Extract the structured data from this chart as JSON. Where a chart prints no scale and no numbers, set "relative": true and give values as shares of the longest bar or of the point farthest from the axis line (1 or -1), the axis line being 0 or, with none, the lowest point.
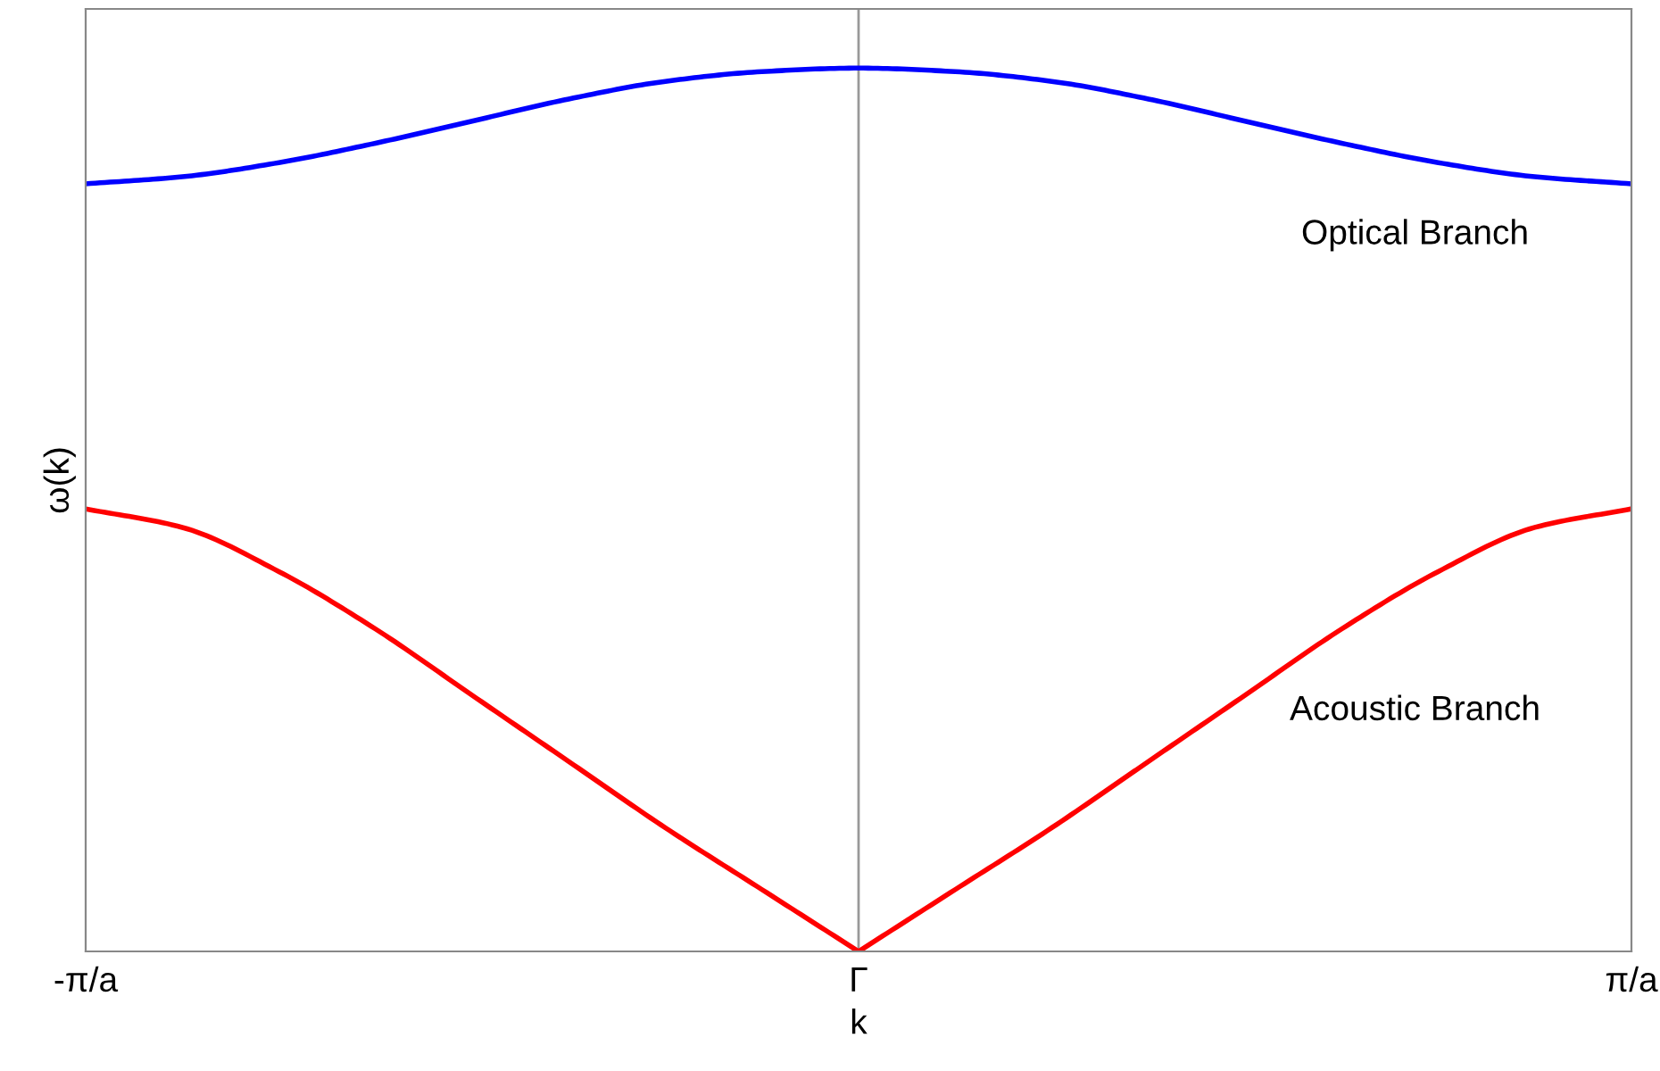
{
  "chart_data": {
    "type": "line",
    "relative": true,
    "xlabel": "k",
    "ylabel": "ω(k)",
    "categories": [
      "-π/a",
      null,
      null,
      null,
      null,
      null,
      null,
      null,
      "Γ",
      null,
      null,
      null,
      null,
      null,
      null,
      null,
      "π/a"
    ],
    "series": [
      {
        "color": "#0000ff",
        "values": [
          0.869,
          0.877,
          0.893,
          0.915,
          0.94,
          0.965,
          0.985,
          0.996,
          1,
          0.996,
          0.985,
          0.965,
          0.94,
          0.915,
          0.893,
          0.877,
          0.869
        ]
      },
      {
        "color": "#ff0000",
        "values": [
          0.501,
          0.48,
          0.43,
          0.365,
          0.29,
          0.215,
          0.14,
          0.07,
          0,
          0.07,
          0.14,
          0.215,
          0.29,
          0.365,
          0.43,
          0.48,
          0.501
        ]
      }
    ],
    "ref_lines": [
      {
        "axis": "x",
        "value": "Γ",
        "color": "#999999"
      }
    ],
    "annotations": [
      "Optical Branch",
      "Acoustic Branch"
    ],
    "grid": false,
    "legend": false
  }
}
